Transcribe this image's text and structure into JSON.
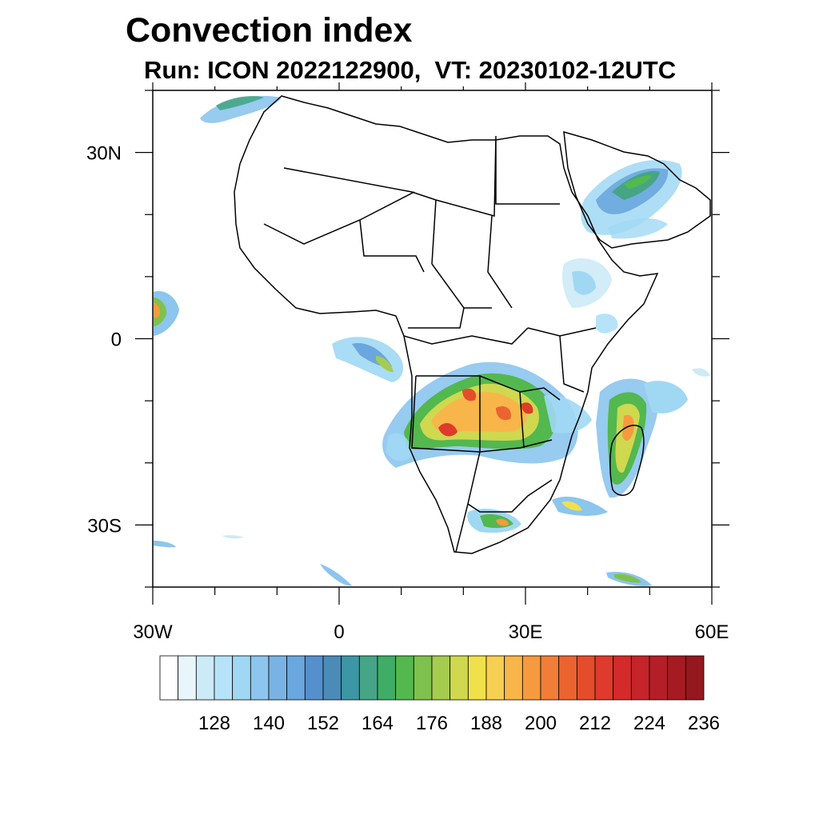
{
  "title": "Convection index",
  "subtitle": "Run: ICON 2022122900,  VT: 20230102-12UTC",
  "axes": {
    "x_ticks": [
      {
        "value": -30,
        "label": "30W"
      },
      {
        "value": 0,
        "label": "0"
      },
      {
        "value": 30,
        "label": "30E"
      },
      {
        "value": 60,
        "label": "60E"
      }
    ],
    "y_ticks": [
      {
        "value": 30,
        "label": "30N"
      },
      {
        "value": 0,
        "label": "0"
      },
      {
        "value": -30,
        "label": "30S"
      }
    ],
    "lon_range": [
      -30,
      60
    ],
    "lat_range": [
      -40,
      40
    ]
  },
  "colorbar": {
    "levels": [
      120,
      124,
      128,
      132,
      136,
      140,
      144,
      148,
      152,
      156,
      160,
      164,
      168,
      172,
      176,
      180,
      184,
      188,
      192,
      196,
      200,
      204,
      208,
      212,
      216,
      220,
      224,
      228,
      232,
      236,
      240
    ],
    "labels": [
      "128",
      "140",
      "152",
      "164",
      "176",
      "188",
      "200",
      "212",
      "224",
      "236"
    ],
    "colors": [
      "#ffffff",
      "#e8f6fc",
      "#cdeaf7",
      "#b6e3f8",
      "#a0d8f4",
      "#8cc5ed",
      "#79b3e3",
      "#6aa7de",
      "#5590cc",
      "#4a8bb8",
      "#3d96a4",
      "#45a586",
      "#40ad66",
      "#53b84e",
      "#7fc14f",
      "#a5cc4f",
      "#cfd84f",
      "#f0e14b",
      "#f7cf52",
      "#f8b54a",
      "#f59a3f",
      "#f17e37",
      "#eb6430",
      "#e44d2b",
      "#dd3b2b",
      "#d42a2b",
      "#c4242a",
      "#b41f27",
      "#a51b22",
      "#94181d"
    ]
  }
}
